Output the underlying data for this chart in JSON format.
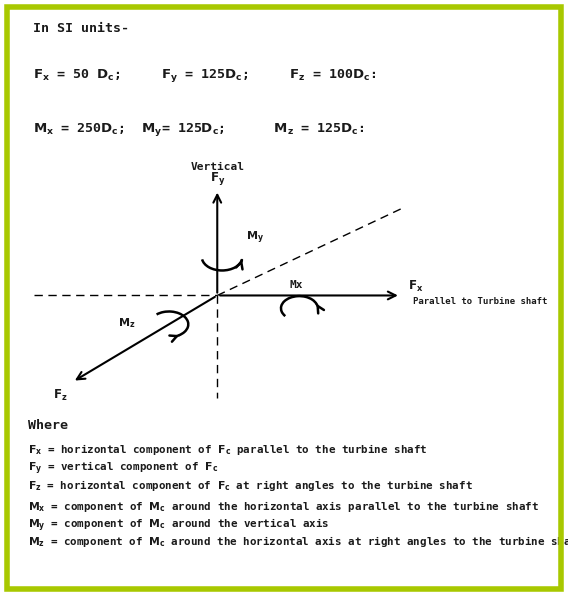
{
  "bg_color": "#ffffff",
  "border_color": "#a8c800",
  "title_line1": "In SI units-",
  "font_color": "#1a1a1a",
  "axis_label_vertical": "Vertical",
  "axis_label_parallel": "Parallel to Turbine shaft",
  "where_text": "Where",
  "def_lines": [
    "Fₓ = horizontal component of Fᶜ parallel to the turbine shaft",
    "Fᵧ = vertical component of Fᶜ",
    "Fᵩ = horizontal component of Fᶜ at right angles to the turbine shaft",
    "",
    "Mₓ = component of Mᶜ around the horizontal axis parallel to the turbine shaft",
    "Mᵧ = component of Mᶜ around the vertical axis",
    "Mᵩ = component of Mᶜ around the horizontal axis at right angles to the turbine shaft."
  ]
}
